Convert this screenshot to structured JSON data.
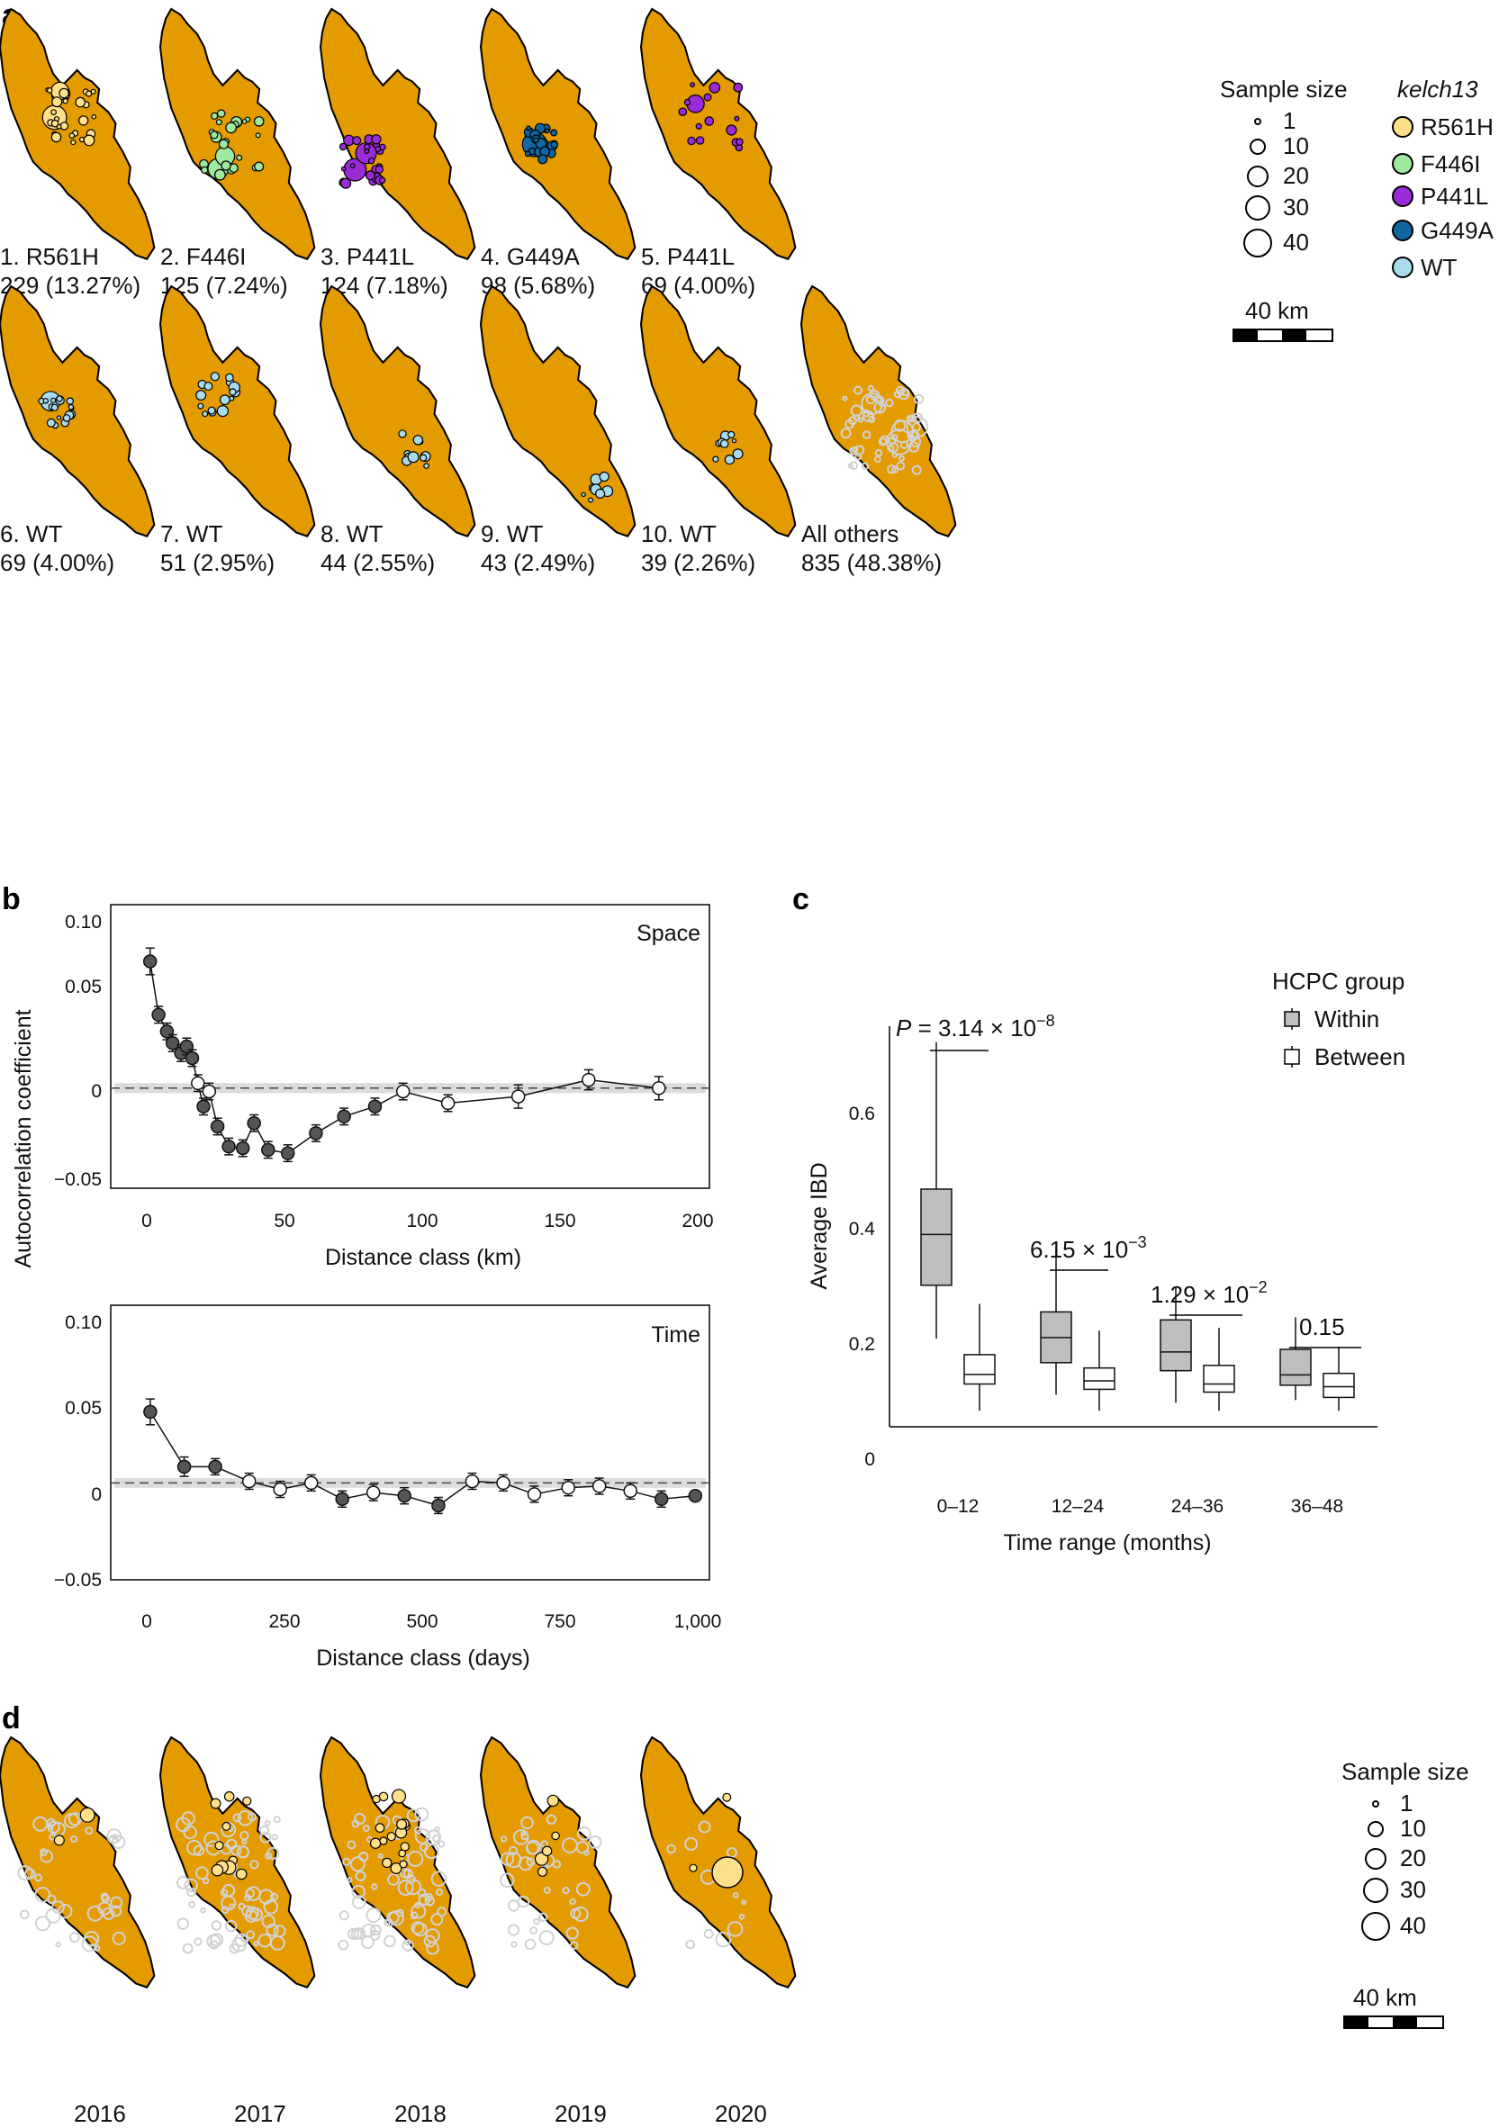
{
  "colors": {
    "map_fill": "#E39B00",
    "map_stroke": "#000000",
    "R561H": "#FFE08A",
    "F446I": "#9EE8A0",
    "P441L": "#9B2BD6",
    "G449A": "#0F66A1",
    "WT": "#A9DBEE",
    "others": "#D2D2D2",
    "within_box": "#BEBEBE",
    "between_box": "#FFFFFF",
    "point_sig": "#555555",
    "point_ns": "#FFFFFF"
  },
  "panel_labels": {
    "a": "a",
    "b": "b",
    "c": "c",
    "d": "d"
  },
  "panel_a": {
    "maps": [
      {
        "rank": "1. R561H",
        "count": "229 (13.27%)",
        "allele": "R561H"
      },
      {
        "rank": "2. F446I",
        "count": "125 (7.24%)",
        "allele": "F446I"
      },
      {
        "rank": "3. P441L",
        "count": "124 (7.18%)",
        "allele": "P441L"
      },
      {
        "rank": "4. G449A",
        "count": "98 (5.68%)",
        "allele": "G449A"
      },
      {
        "rank": "5. P441L",
        "count": "69 (4.00%)",
        "allele": "P441L"
      },
      {
        "rank": "6. WT",
        "count": "69 (4.00%)",
        "allele": "WT"
      },
      {
        "rank": "7. WT",
        "count": "51 (2.95%)",
        "allele": "WT"
      },
      {
        "rank": "8. WT",
        "count": "44 (2.55%)",
        "allele": "WT"
      },
      {
        "rank": "9. WT",
        "count": "43 (2.49%)",
        "allele": "WT"
      },
      {
        "rank": "10. WT",
        "count": "39 (2.26%)",
        "allele": "WT"
      },
      {
        "rank": "All others",
        "count": "835 (48.38%)",
        "allele": "others"
      }
    ],
    "size_legend": {
      "title": "Sample size",
      "values": [
        "1",
        "10",
        "20",
        "30",
        "40"
      ]
    },
    "allele_legend": {
      "title": "kelch13",
      "items": [
        "R561H",
        "F446I",
        "P441L",
        "G449A",
        "WT"
      ]
    },
    "scale_bar": "40 km"
  },
  "panel_b": {
    "ylabel": "Autocorrelation coefficient",
    "y_ticks": [
      "0.10",
      "0.05",
      "0",
      "−0.05"
    ],
    "space": {
      "title": "Space",
      "xlabel": "Distance class (km)",
      "x_ticks": [
        "0",
        "50",
        "100",
        "150",
        "200"
      ]
    },
    "time": {
      "title": "Time",
      "xlabel": "Distance class (days)",
      "x_ticks": [
        "0",
        "250",
        "500",
        "750",
        "1,000"
      ]
    }
  },
  "panel_c": {
    "ylabel": "Average IBD",
    "xlabel": "Time range (months)",
    "y_ticks": [
      "0.6",
      "0.4",
      "0.2",
      "0"
    ],
    "legend_title": "HCPC group",
    "legend_items": [
      "Within",
      "Between"
    ],
    "pvalues": {
      "g1_prefix": "P",
      "g1_mid": " = 3.14 × 10",
      "g1_exp": "−8",
      "g2_mid": "6.15 × 10",
      "g2_exp": "−3",
      "g3_mid": "1.29 × 10",
      "g3_exp": "−2",
      "g4": "0.15"
    }
  },
  "panel_d": {
    "years": [
      "2016",
      "2017",
      "2018",
      "2019",
      "2020"
    ],
    "size_legend": {
      "title": "Sample size",
      "values": [
        "1",
        "10",
        "20",
        "30",
        "40"
      ]
    },
    "scale_bar": "40 km"
  },
  "chart_data": [
    {
      "type": "line",
      "title": "Space",
      "xlabel": "Distance class (km)",
      "ylabel": "Autocorrelation coefficient",
      "xlim": [
        -8,
        205
      ],
      "ylim": [
        -0.06,
        0.11
      ],
      "x": [
        6,
        9,
        12,
        14,
        17,
        19,
        21,
        23,
        25,
        27,
        30,
        34,
        39,
        43,
        48,
        55,
        65,
        75,
        86,
        96,
        112,
        137,
        162,
        187
      ],
      "y": [
        0.076,
        0.044,
        0.034,
        0.027,
        0.021,
        0.025,
        0.018,
        0.003,
        -0.011,
        -0.002,
        -0.023,
        -0.035,
        -0.036,
        -0.021,
        -0.037,
        -0.039,
        -0.027,
        -0.017,
        -0.011,
        -0.002,
        -0.009,
        -0.005,
        0.005,
        0.0
      ],
      "significant": [
        true,
        true,
        true,
        true,
        true,
        true,
        true,
        false,
        true,
        false,
        true,
        true,
        true,
        true,
        true,
        true,
        true,
        true,
        true,
        false,
        false,
        false,
        false,
        false
      ],
      "error": [
        0.008,
        0.005,
        0.005,
        0.005,
        0.005,
        0.005,
        0.005,
        0.005,
        0.005,
        0.005,
        0.005,
        0.005,
        0.005,
        0.005,
        0.005,
        0.005,
        0.005,
        0.005,
        0.005,
        0.005,
        0.005,
        0.007,
        0.006,
        0.007
      ],
      "null_band": [
        -0.003,
        0.003
      ]
    },
    {
      "type": "line",
      "title": "Time",
      "xlabel": "Distance class (days)",
      "ylabel": "Autocorrelation coefficient",
      "xlim": [
        -40,
        1020
      ],
      "ylim": [
        -0.06,
        0.11
      ],
      "x": [
        30,
        90,
        145,
        205,
        260,
        315,
        370,
        425,
        480,
        540,
        600,
        655,
        710,
        770,
        825,
        880,
        935,
        995
      ],
      "y": [
        0.044,
        0.01,
        0.01,
        0.001,
        -0.004,
        0.0,
        -0.01,
        -0.006,
        -0.008,
        -0.014,
        0.001,
        0.0,
        -0.007,
        -0.003,
        -0.002,
        -0.005,
        -0.01,
        -0.008
      ],
      "significant": [
        true,
        true,
        true,
        false,
        false,
        false,
        true,
        false,
        true,
        true,
        false,
        false,
        false,
        false,
        false,
        false,
        true,
        true
      ],
      "error": [
        0.008,
        0.006,
        0.005,
        0.005,
        0.005,
        0.005,
        0.005,
        0.005,
        0.005,
        0.005,
        0.005,
        0.005,
        0.005,
        0.005,
        0.005,
        0.005,
        0.005,
        0.003
      ],
      "null_band": [
        -0.003,
        0.003
      ]
    },
    {
      "type": "box",
      "title": "",
      "xlabel": "Time range (months)",
      "ylabel": "Average IBD",
      "ylim": [
        -0.03,
        0.72
      ],
      "categories": [
        "0–12",
        "12–24",
        "24–36",
        "36–48"
      ],
      "series": [
        {
          "name": "Within",
          "q1": [
            0.235,
            0.09,
            0.075,
            0.048
          ],
          "median": [
            0.33,
            0.137,
            0.11,
            0.067
          ],
          "q3": [
            0.415,
            0.185,
            0.17,
            0.115
          ],
          "whisker_low": [
            0.135,
            0.03,
            0.015,
            0.02
          ],
          "whisker_high": [
            0.69,
            0.305,
            0.23,
            0.175
          ]
        },
        {
          "name": "Between",
          "q1": [
            0.05,
            0.04,
            0.035,
            0.025
          ],
          "median": [
            0.068,
            0.056,
            0.05,
            0.045
          ],
          "q3": [
            0.105,
            0.08,
            0.085,
            0.07
          ],
          "whisker_low": [
            0.0,
            0.0,
            0.0,
            0.0
          ],
          "whisker_high": [
            0.2,
            0.15,
            0.155,
            0.12
          ]
        }
      ],
      "pvalue_labels": [
        "P = 3.14 × 10^-8",
        "6.15 × 10^-3",
        "1.29 × 10^-2",
        "0.15"
      ]
    }
  ]
}
